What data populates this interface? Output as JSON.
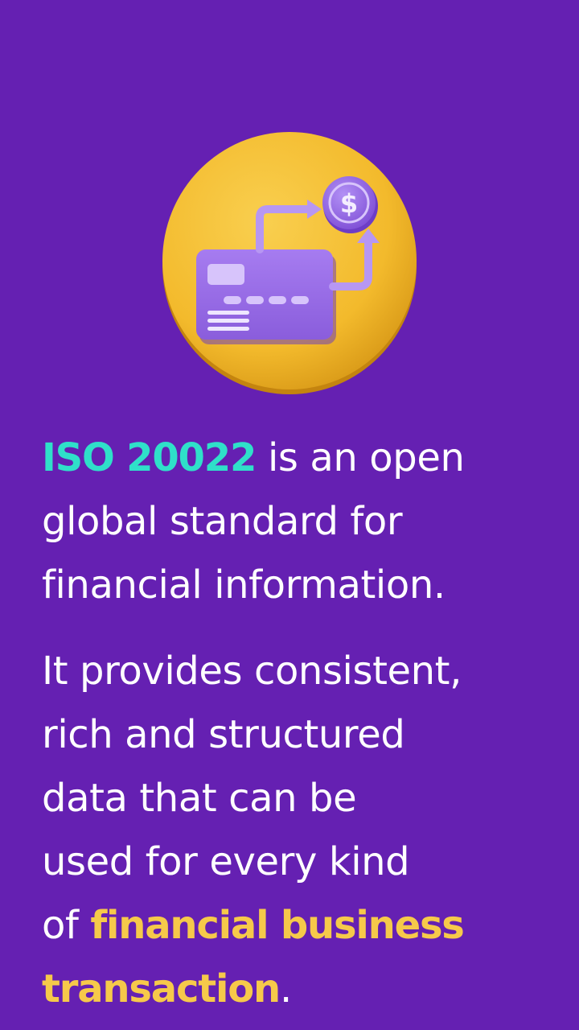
{
  "colors": {
    "background": "#6520b2",
    "text": "#ffffff",
    "highlight_teal": "#2fe0c9",
    "highlight_yellow": "#f6c94a",
    "coin_gold": "#f5bd2f",
    "card_purple": "#9a6ee6"
  },
  "illustration": {
    "icon": "credit-card-payment-icon",
    "coin_symbol": "$"
  },
  "intro": {
    "highlight": "ISO 20022",
    "line1_rest": " is an open",
    "line2": "global standard for",
    "line3": "financial information."
  },
  "details": {
    "line1": "It provides consistent,",
    "line2": "rich and structured",
    "line3": "data that can be",
    "line4": "used for every kind",
    "line5_prefix": "of ",
    "highlight_line5": "financial business",
    "highlight_line6": "transaction",
    "line6_suffix": "."
  }
}
